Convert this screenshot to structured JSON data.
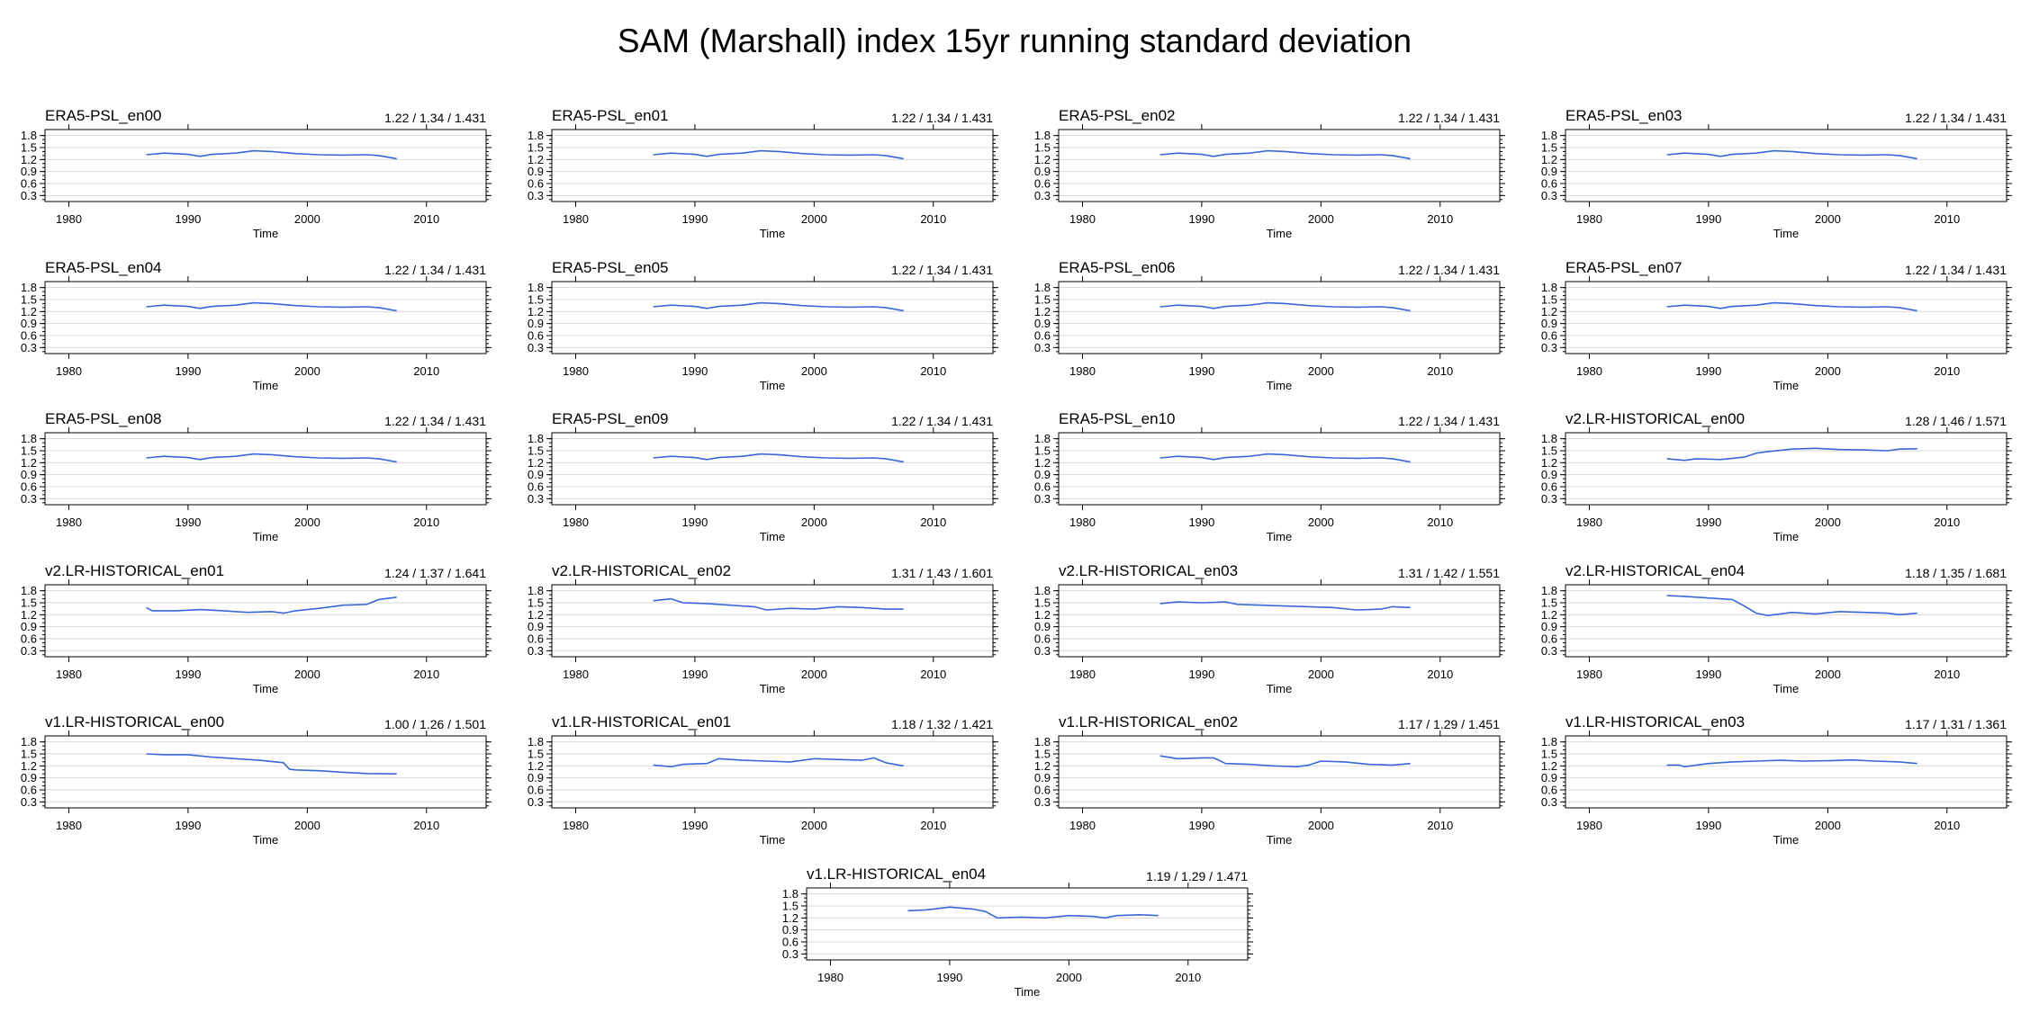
{
  "title": "SAM (Marshall) index 15yr running standard deviation",
  "colors": {
    "series": "#3a67d8",
    "grid": "#d9d9d9",
    "frame": "#000000"
  },
  "chart_data": [
    {
      "type": "line",
      "title": "ERA5-PSL_en00",
      "stats": "1.22 / 1.34 / 1.431",
      "xlabel": "Time",
      "xlim": [
        1978,
        2015
      ],
      "ylim": [
        0.15,
        1.95
      ],
      "xticks": [
        1980,
        1990,
        2000,
        2010
      ],
      "yticks": [
        0.3,
        0.6,
        0.9,
        1.2,
        1.5,
        1.8
      ],
      "grid": true,
      "x": [
        1986.5,
        1988,
        1990,
        1991,
        1992,
        1994,
        1995.5,
        1997,
        1999,
        2001,
        2003,
        2005,
        2006,
        2007.5
      ],
      "y": [
        1.32,
        1.36,
        1.33,
        1.28,
        1.33,
        1.36,
        1.42,
        1.4,
        1.35,
        1.32,
        1.31,
        1.32,
        1.3,
        1.22
      ]
    },
    {
      "type": "line",
      "title": "ERA5-PSL_en01",
      "stats": "1.22 / 1.34 / 1.431",
      "xlabel": "Time",
      "xlim": [
        1978,
        2015
      ],
      "ylim": [
        0.15,
        1.95
      ],
      "xticks": [
        1980,
        1990,
        2000,
        2010
      ],
      "yticks": [
        0.3,
        0.6,
        0.9,
        1.2,
        1.5,
        1.8
      ],
      "grid": true,
      "x": [
        1986.5,
        1988,
        1990,
        1991,
        1992,
        1994,
        1995.5,
        1997,
        1999,
        2001,
        2003,
        2005,
        2006,
        2007.5
      ],
      "y": [
        1.32,
        1.36,
        1.33,
        1.28,
        1.33,
        1.36,
        1.42,
        1.4,
        1.35,
        1.32,
        1.31,
        1.32,
        1.3,
        1.22
      ]
    },
    {
      "type": "line",
      "title": "ERA5-PSL_en02",
      "stats": "1.22 / 1.34 / 1.431",
      "xlabel": "Time",
      "xlim": [
        1978,
        2015
      ],
      "ylim": [
        0.15,
        1.95
      ],
      "xticks": [
        1980,
        1990,
        2000,
        2010
      ],
      "yticks": [
        0.3,
        0.6,
        0.9,
        1.2,
        1.5,
        1.8
      ],
      "grid": true,
      "x": [
        1986.5,
        1988,
        1990,
        1991,
        1992,
        1994,
        1995.5,
        1997,
        1999,
        2001,
        2003,
        2005,
        2006,
        2007.5
      ],
      "y": [
        1.32,
        1.36,
        1.33,
        1.28,
        1.33,
        1.36,
        1.42,
        1.4,
        1.35,
        1.32,
        1.31,
        1.32,
        1.3,
        1.22
      ]
    },
    {
      "type": "line",
      "title": "ERA5-PSL_en03",
      "stats": "1.22 / 1.34 / 1.431",
      "xlabel": "Time",
      "xlim": [
        1978,
        2015
      ],
      "ylim": [
        0.15,
        1.95
      ],
      "xticks": [
        1980,
        1990,
        2000,
        2010
      ],
      "yticks": [
        0.3,
        0.6,
        0.9,
        1.2,
        1.5,
        1.8
      ],
      "grid": true,
      "x": [
        1986.5,
        1988,
        1990,
        1991,
        1992,
        1994,
        1995.5,
        1997,
        1999,
        2001,
        2003,
        2005,
        2006,
        2007.5
      ],
      "y": [
        1.32,
        1.36,
        1.33,
        1.28,
        1.33,
        1.36,
        1.42,
        1.4,
        1.35,
        1.32,
        1.31,
        1.32,
        1.3,
        1.22
      ]
    },
    {
      "type": "line",
      "title": "ERA5-PSL_en04",
      "stats": "1.22 / 1.34 / 1.431",
      "xlabel": "Time",
      "xlim": [
        1978,
        2015
      ],
      "ylim": [
        0.15,
        1.95
      ],
      "xticks": [
        1980,
        1990,
        2000,
        2010
      ],
      "yticks": [
        0.3,
        0.6,
        0.9,
        1.2,
        1.5,
        1.8
      ],
      "grid": true,
      "x": [
        1986.5,
        1988,
        1990,
        1991,
        1992,
        1994,
        1995.5,
        1997,
        1999,
        2001,
        2003,
        2005,
        2006,
        2007.5
      ],
      "y": [
        1.32,
        1.36,
        1.33,
        1.28,
        1.33,
        1.36,
        1.42,
        1.4,
        1.35,
        1.32,
        1.31,
        1.32,
        1.3,
        1.22
      ]
    },
    {
      "type": "line",
      "title": "ERA5-PSL_en05",
      "stats": "1.22 / 1.34 / 1.431",
      "xlabel": "Time",
      "xlim": [
        1978,
        2015
      ],
      "ylim": [
        0.15,
        1.95
      ],
      "xticks": [
        1980,
        1990,
        2000,
        2010
      ],
      "yticks": [
        0.3,
        0.6,
        0.9,
        1.2,
        1.5,
        1.8
      ],
      "grid": true,
      "x": [
        1986.5,
        1988,
        1990,
        1991,
        1992,
        1994,
        1995.5,
        1997,
        1999,
        2001,
        2003,
        2005,
        2006,
        2007.5
      ],
      "y": [
        1.32,
        1.36,
        1.33,
        1.28,
        1.33,
        1.36,
        1.42,
        1.4,
        1.35,
        1.32,
        1.31,
        1.32,
        1.3,
        1.22
      ]
    },
    {
      "type": "line",
      "title": "ERA5-PSL_en06",
      "stats": "1.22 / 1.34 / 1.431",
      "xlabel": "Time",
      "xlim": [
        1978,
        2015
      ],
      "ylim": [
        0.15,
        1.95
      ],
      "xticks": [
        1980,
        1990,
        2000,
        2010
      ],
      "yticks": [
        0.3,
        0.6,
        0.9,
        1.2,
        1.5,
        1.8
      ],
      "grid": true,
      "x": [
        1986.5,
        1988,
        1990,
        1991,
        1992,
        1994,
        1995.5,
        1997,
        1999,
        2001,
        2003,
        2005,
        2006,
        2007.5
      ],
      "y": [
        1.32,
        1.36,
        1.33,
        1.28,
        1.33,
        1.36,
        1.42,
        1.4,
        1.35,
        1.32,
        1.31,
        1.32,
        1.3,
        1.22
      ]
    },
    {
      "type": "line",
      "title": "ERA5-PSL_en07",
      "stats": "1.22 / 1.34 / 1.431",
      "xlabel": "Time",
      "xlim": [
        1978,
        2015
      ],
      "ylim": [
        0.15,
        1.95
      ],
      "xticks": [
        1980,
        1990,
        2000,
        2010
      ],
      "yticks": [
        0.3,
        0.6,
        0.9,
        1.2,
        1.5,
        1.8
      ],
      "grid": true,
      "x": [
        1986.5,
        1988,
        1990,
        1991,
        1992,
        1994,
        1995.5,
        1997,
        1999,
        2001,
        2003,
        2005,
        2006,
        2007.5
      ],
      "y": [
        1.32,
        1.36,
        1.33,
        1.28,
        1.33,
        1.36,
        1.42,
        1.4,
        1.35,
        1.32,
        1.31,
        1.32,
        1.3,
        1.22
      ]
    },
    {
      "type": "line",
      "title": "ERA5-PSL_en08",
      "stats": "1.22 / 1.34 / 1.431",
      "xlabel": "Time",
      "xlim": [
        1978,
        2015
      ],
      "ylim": [
        0.15,
        1.95
      ],
      "xticks": [
        1980,
        1990,
        2000,
        2010
      ],
      "yticks": [
        0.3,
        0.6,
        0.9,
        1.2,
        1.5,
        1.8
      ],
      "grid": true,
      "x": [
        1986.5,
        1988,
        1990,
        1991,
        1992,
        1994,
        1995.5,
        1997,
        1999,
        2001,
        2003,
        2005,
        2006,
        2007.5
      ],
      "y": [
        1.32,
        1.36,
        1.33,
        1.28,
        1.33,
        1.36,
        1.42,
        1.4,
        1.35,
        1.32,
        1.31,
        1.32,
        1.3,
        1.22
      ]
    },
    {
      "type": "line",
      "title": "ERA5-PSL_en09",
      "stats": "1.22 / 1.34 / 1.431",
      "xlabel": "Time",
      "xlim": [
        1978,
        2015
      ],
      "ylim": [
        0.15,
        1.95
      ],
      "xticks": [
        1980,
        1990,
        2000,
        2010
      ],
      "yticks": [
        0.3,
        0.6,
        0.9,
        1.2,
        1.5,
        1.8
      ],
      "grid": true,
      "x": [
        1986.5,
        1988,
        1990,
        1991,
        1992,
        1994,
        1995.5,
        1997,
        1999,
        2001,
        2003,
        2005,
        2006,
        2007.5
      ],
      "y": [
        1.32,
        1.36,
        1.33,
        1.28,
        1.33,
        1.36,
        1.42,
        1.4,
        1.35,
        1.32,
        1.31,
        1.32,
        1.3,
        1.22
      ]
    },
    {
      "type": "line",
      "title": "ERA5-PSL_en10",
      "stats": "1.22 / 1.34 / 1.431",
      "xlabel": "Time",
      "xlim": [
        1978,
        2015
      ],
      "ylim": [
        0.15,
        1.95
      ],
      "xticks": [
        1980,
        1990,
        2000,
        2010
      ],
      "yticks": [
        0.3,
        0.6,
        0.9,
        1.2,
        1.5,
        1.8
      ],
      "grid": true,
      "x": [
        1986.5,
        1988,
        1990,
        1991,
        1992,
        1994,
        1995.5,
        1997,
        1999,
        2001,
        2003,
        2005,
        2006,
        2007.5
      ],
      "y": [
        1.32,
        1.36,
        1.33,
        1.28,
        1.33,
        1.36,
        1.42,
        1.4,
        1.35,
        1.32,
        1.31,
        1.32,
        1.3,
        1.22
      ]
    },
    {
      "type": "line",
      "title": "v2.LR-HISTORICAL_en00",
      "stats": "1.28 / 1.46 / 1.571",
      "xlabel": "Time",
      "xlim": [
        1978,
        2015
      ],
      "ylim": [
        0.15,
        1.95
      ],
      "xticks": [
        1980,
        1990,
        2000,
        2010
      ],
      "yticks": [
        0.3,
        0.6,
        0.9,
        1.2,
        1.5,
        1.8
      ],
      "grid": true,
      "x": [
        1986.5,
        1988,
        1989,
        1991,
        1993,
        1994,
        1995,
        1997,
        1999,
        2001,
        2003,
        2005,
        2006,
        2007.5
      ],
      "y": [
        1.3,
        1.26,
        1.3,
        1.28,
        1.34,
        1.44,
        1.48,
        1.54,
        1.56,
        1.53,
        1.52,
        1.5,
        1.54,
        1.55
      ]
    },
    {
      "type": "line",
      "title": "v2.LR-HISTORICAL_en01",
      "stats": "1.24 / 1.37 / 1.641",
      "xlabel": "Time",
      "xlim": [
        1978,
        2015
      ],
      "ylim": [
        0.15,
        1.95
      ],
      "xticks": [
        1980,
        1990,
        2000,
        2010
      ],
      "yticks": [
        0.3,
        0.6,
        0.9,
        1.2,
        1.5,
        1.8
      ],
      "grid": true,
      "x": [
        1986.5,
        1987,
        1989,
        1991,
        1993,
        1995,
        1997,
        1998,
        1999,
        2001,
        2003,
        2005,
        2006,
        2007.5
      ],
      "y": [
        1.38,
        1.3,
        1.3,
        1.33,
        1.3,
        1.26,
        1.28,
        1.24,
        1.3,
        1.36,
        1.44,
        1.46,
        1.58,
        1.64
      ]
    },
    {
      "type": "line",
      "title": "v2.LR-HISTORICAL_en02",
      "stats": "1.31 / 1.43 / 1.601",
      "xlabel": "Time",
      "xlim": [
        1978,
        2015
      ],
      "ylim": [
        0.15,
        1.95
      ],
      "xticks": [
        1980,
        1990,
        2000,
        2010
      ],
      "yticks": [
        0.3,
        0.6,
        0.9,
        1.2,
        1.5,
        1.8
      ],
      "grid": true,
      "x": [
        1986.5,
        1988,
        1989,
        1991,
        1993,
        1995,
        1996,
        1998,
        2000,
        2002,
        2004,
        2006,
        2007.5
      ],
      "y": [
        1.55,
        1.6,
        1.5,
        1.48,
        1.44,
        1.4,
        1.32,
        1.36,
        1.34,
        1.4,
        1.38,
        1.34,
        1.34
      ]
    },
    {
      "type": "line",
      "title": "v2.LR-HISTORICAL_en03",
      "stats": "1.31 / 1.42 / 1.551",
      "xlabel": "Time",
      "xlim": [
        1978,
        2015
      ],
      "ylim": [
        0.15,
        1.95
      ],
      "xticks": [
        1980,
        1990,
        2000,
        2010
      ],
      "yticks": [
        0.3,
        0.6,
        0.9,
        1.2,
        1.5,
        1.8
      ],
      "grid": true,
      "x": [
        1986.5,
        1988,
        1990,
        1992,
        1993,
        1995,
        1997,
        1999,
        2001,
        2003,
        2005,
        2006,
        2007.5
      ],
      "y": [
        1.48,
        1.52,
        1.5,
        1.52,
        1.46,
        1.44,
        1.42,
        1.4,
        1.38,
        1.32,
        1.34,
        1.4,
        1.38
      ]
    },
    {
      "type": "line",
      "title": "v2.LR-HISTORICAL_en04",
      "stats": "1.18 / 1.35 / 1.681",
      "xlabel": "Time",
      "xlim": [
        1978,
        2015
      ],
      "ylim": [
        0.15,
        1.95
      ],
      "xticks": [
        1980,
        1990,
        2000,
        2010
      ],
      "yticks": [
        0.3,
        0.6,
        0.9,
        1.2,
        1.5,
        1.8
      ],
      "grid": true,
      "x": [
        1986.5,
        1988,
        1990,
        1992,
        1993,
        1994,
        1995,
        1997,
        1999,
        2001,
        2003,
        2005,
        2006,
        2007.5
      ],
      "y": [
        1.68,
        1.66,
        1.62,
        1.58,
        1.42,
        1.24,
        1.18,
        1.26,
        1.22,
        1.28,
        1.26,
        1.24,
        1.2,
        1.24
      ]
    },
    {
      "type": "line",
      "title": "v1.LR-HISTORICAL_en00",
      "stats": "1.00 / 1.26 / 1.501",
      "xlabel": "Time",
      "xlim": [
        1978,
        2015
      ],
      "ylim": [
        0.15,
        1.95
      ],
      "xticks": [
        1980,
        1990,
        2000,
        2010
      ],
      "yticks": [
        0.3,
        0.6,
        0.9,
        1.2,
        1.5,
        1.8
      ],
      "grid": true,
      "x": [
        1986.5,
        1988,
        1990,
        1992,
        1994,
        1996,
        1998,
        1998.5,
        1999,
        2001,
        2003,
        2005,
        2007.5
      ],
      "y": [
        1.5,
        1.48,
        1.48,
        1.42,
        1.38,
        1.34,
        1.28,
        1.12,
        1.1,
        1.08,
        1.04,
        1.01,
        1.0
      ]
    },
    {
      "type": "line",
      "title": "v1.LR-HISTORICAL_en01",
      "stats": "1.18 / 1.32 / 1.421",
      "xlabel": "Time",
      "xlim": [
        1978,
        2015
      ],
      "ylim": [
        0.15,
        1.95
      ],
      "xticks": [
        1980,
        1990,
        2000,
        2010
      ],
      "yticks": [
        0.3,
        0.6,
        0.9,
        1.2,
        1.5,
        1.8
      ],
      "grid": true,
      "x": [
        1986.5,
        1988,
        1989,
        1991,
        1992,
        1994,
        1996,
        1998,
        2000,
        2002,
        2004,
        2005,
        2006,
        2007.5
      ],
      "y": [
        1.22,
        1.18,
        1.24,
        1.26,
        1.38,
        1.34,
        1.32,
        1.3,
        1.38,
        1.36,
        1.34,
        1.4,
        1.28,
        1.2
      ]
    },
    {
      "type": "line",
      "title": "v1.LR-HISTORICAL_en02",
      "stats": "1.17 / 1.29 / 1.451",
      "xlabel": "Time",
      "xlim": [
        1978,
        2015
      ],
      "ylim": [
        0.15,
        1.95
      ],
      "xticks": [
        1980,
        1990,
        2000,
        2010
      ],
      "yticks": [
        0.3,
        0.6,
        0.9,
        1.2,
        1.5,
        1.8
      ],
      "grid": true,
      "x": [
        1986.5,
        1988,
        1990,
        1991,
        1992,
        1994,
        1996,
        1998,
        1999,
        2000,
        2002,
        2004,
        2006,
        2007.5
      ],
      "y": [
        1.45,
        1.38,
        1.4,
        1.4,
        1.26,
        1.24,
        1.2,
        1.18,
        1.22,
        1.32,
        1.3,
        1.24,
        1.22,
        1.26
      ]
    },
    {
      "type": "line",
      "title": "v1.LR-HISTORICAL_en03",
      "stats": "1.17 / 1.31 / 1.361",
      "xlabel": "Time",
      "xlim": [
        1978,
        2015
      ],
      "ylim": [
        0.15,
        1.95
      ],
      "xticks": [
        1980,
        1990,
        2000,
        2010
      ],
      "yticks": [
        0.3,
        0.6,
        0.9,
        1.2,
        1.5,
        1.8
      ],
      "grid": true,
      "x": [
        1986.5,
        1987.5,
        1988,
        1990,
        1992,
        1994,
        1996,
        1998,
        2000,
        2002,
        2004,
        2006,
        2007.5
      ],
      "y": [
        1.22,
        1.22,
        1.18,
        1.26,
        1.3,
        1.32,
        1.34,
        1.32,
        1.33,
        1.35,
        1.32,
        1.3,
        1.26
      ]
    },
    {
      "type": "line",
      "title": "v1.LR-HISTORICAL_en04",
      "stats": "1.19 / 1.29 / 1.471",
      "xlabel": "Time",
      "xlim": [
        1978,
        2015
      ],
      "ylim": [
        0.15,
        1.95
      ],
      "xticks": [
        1980,
        1990,
        2000,
        2010
      ],
      "yticks": [
        0.3,
        0.6,
        0.9,
        1.2,
        1.5,
        1.8
      ],
      "grid": true,
      "x": [
        1986.5,
        1988,
        1990,
        1992,
        1993,
        1994,
        1996,
        1998,
        2000,
        2002,
        2003,
        2004,
        2006,
        2007.5
      ],
      "y": [
        1.38,
        1.4,
        1.47,
        1.42,
        1.36,
        1.2,
        1.22,
        1.2,
        1.26,
        1.24,
        1.2,
        1.26,
        1.28,
        1.26
      ]
    }
  ]
}
